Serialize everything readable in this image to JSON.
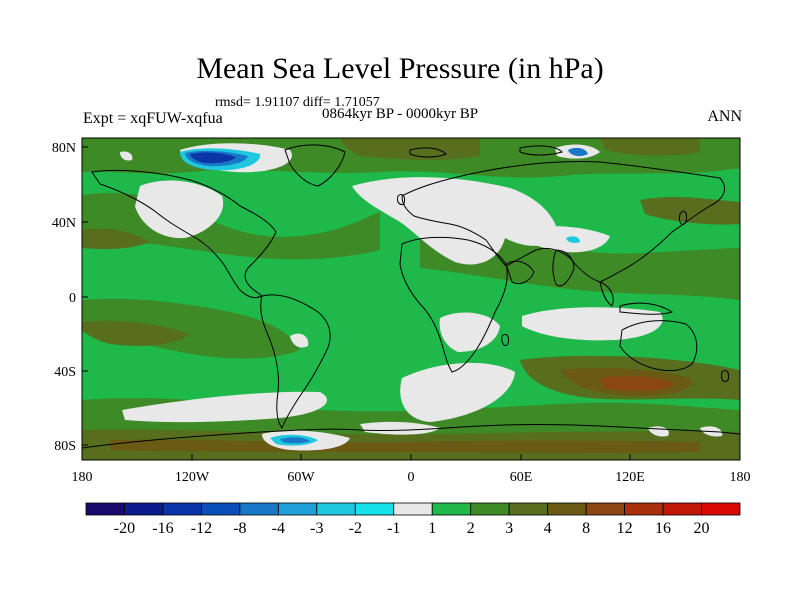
{
  "title": "Mean Sea Level Pressure (in hPa)",
  "stats": "rmsd= 1.91107 diff= 1.71057",
  "period": "0864kyr BP - 0000kyr BP",
  "experiment": "Expt = xqFUW-xqfua",
  "season": "ANN",
  "lat_labels": [
    "80N",
    "40N",
    "0",
    "40S",
    "80S"
  ],
  "lon_labels": [
    "180",
    "120W",
    "60W",
    "0",
    "60E",
    "120E",
    "180"
  ],
  "colorbar": {
    "labels": [
      "-20",
      "-16",
      "-12",
      "-8",
      "-4",
      "-3",
      "-2",
      "-1",
      "1",
      "2",
      "3",
      "4",
      "8",
      "12",
      "16",
      "20"
    ],
    "colors": [
      "#1a0a6e",
      "#0c1c8a",
      "#0a36a8",
      "#0a4fb8",
      "#1a78c8",
      "#1fa0d8",
      "#1ec8e0",
      "#15e2ea",
      "#e8e8e8",
      "#1fb84a",
      "#3d8a26",
      "#566e1e",
      "#6a5a14",
      "#8a4810",
      "#a8300a",
      "#c01808",
      "#d80a04"
    ]
  },
  "field_colors": {
    "ocean_base": "#1fb84a",
    "positive_3": "#3d8a26",
    "positive_4": "#566e1e",
    "positive_8": "#6a5a14",
    "near_zero": "#e8e8e8",
    "negative_2": "#1ec8e0",
    "negative_3": "#1fa0d8",
    "negative_8": "#0a4fb8",
    "negative_12": "#0a36a8"
  }
}
